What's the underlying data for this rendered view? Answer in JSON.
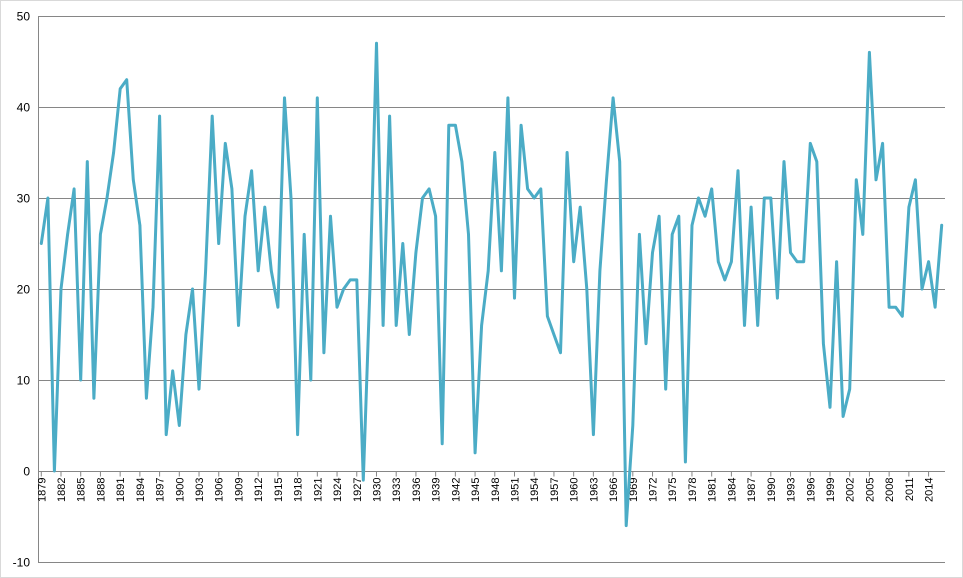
{
  "chart_data": {
    "type": "line",
    "title": "",
    "xlabel": "",
    "ylabel": "",
    "ylim": [
      -10,
      50
    ],
    "yticks": [
      -10,
      0,
      10,
      20,
      30,
      40,
      50
    ],
    "grid": true,
    "legend": "none",
    "series_color": "#4bacc6",
    "x_start": 1879,
    "x_tick_labels": [
      "1879",
      "1882",
      "1885",
      "1888",
      "1891",
      "1894",
      "1897",
      "1900",
      "1903",
      "1906",
      "1909",
      "1912",
      "1915",
      "1918",
      "1921",
      "1924",
      "1927",
      "1930",
      "1933",
      "1936",
      "1939",
      "1942",
      "1945",
      "1948",
      "1951",
      "1954",
      "1957",
      "1960",
      "1963",
      "1966",
      "1969",
      "1972",
      "1975",
      "1978",
      "1981",
      "1984",
      "1987",
      "1990",
      "1993",
      "1996",
      "1999",
      "2002",
      "2005",
      "2008",
      "2011",
      "2014"
    ],
    "series": [
      {
        "x": [
          1879,
          1880,
          1881,
          1882,
          1883,
          1884,
          1885,
          1886,
          1887,
          1888,
          1889,
          1890,
          1891,
          1892,
          1893,
          1894,
          1895,
          1896,
          1897,
          1898,
          1899,
          1900,
          1901,
          1902,
          1903,
          1904,
          1905,
          1906,
          1907,
          1908,
          1909,
          1910,
          1911,
          1912,
          1913,
          1914,
          1915,
          1916,
          1917,
          1918,
          1919,
          1920,
          1921,
          1922,
          1923,
          1924,
          1925,
          1926,
          1927,
          1928,
          1929,
          1930,
          1931,
          1932,
          1933,
          1934,
          1935,
          1936,
          1937,
          1938,
          1939,
          1940,
          1941,
          1942,
          1943,
          1944,
          1945,
          1946,
          1947,
          1948,
          1949,
          1950,
          1951,
          1952,
          1953,
          1954,
          1955,
          1956,
          1957,
          1958,
          1959,
          1960,
          1961,
          1962,
          1963,
          1964,
          1965,
          1966,
          1967,
          1968,
          1969,
          1970,
          1971,
          1972,
          1973,
          1974,
          1975,
          1976,
          1977,
          1978,
          1979,
          1980,
          1981,
          1982,
          1983,
          1984,
          1985,
          1986,
          1987,
          1988,
          1989,
          1990,
          1991,
          1992,
          1993,
          1994,
          1995,
          1996,
          1997,
          1998,
          1999,
          2000,
          2001,
          2002,
          2003,
          2004,
          2005,
          2006,
          2007,
          2008,
          2009,
          2010,
          2011,
          2012,
          2013,
          2014,
          2015,
          2016
        ],
        "values": [
          25,
          30,
          0,
          20,
          26,
          31,
          10,
          34,
          8,
          26,
          30,
          35,
          42,
          43,
          32,
          27,
          8,
          18,
          39,
          4,
          11,
          5,
          15,
          20,
          9,
          22,
          39,
          25,
          36,
          31,
          16,
          28,
          33,
          22,
          29,
          22,
          18,
          41,
          30,
          4,
          26,
          10,
          41,
          13,
          28,
          18,
          20,
          21,
          21,
          -1,
          20,
          47,
          16,
          39,
          16,
          25,
          15,
          24,
          30,
          31,
          28,
          3,
          38,
          38,
          34,
          26,
          2,
          16,
          22,
          35,
          22,
          41,
          19,
          38,
          31,
          30,
          31,
          17,
          15,
          13,
          35,
          23,
          29,
          20,
          4,
          22,
          32,
          41,
          34,
          -6,
          5,
          26,
          14,
          24,
          28,
          9,
          26,
          28,
          1,
          27,
          30,
          28,
          31,
          23,
          21,
          23,
          33,
          16,
          29,
          16,
          30,
          30,
          19,
          34,
          24,
          23,
          23,
          36,
          34,
          14,
          7,
          23,
          6,
          9,
          32,
          26,
          46,
          32,
          36,
          18,
          18,
          17,
          29,
          32,
          20,
          23,
          18,
          27
        ]
      }
    ]
  }
}
